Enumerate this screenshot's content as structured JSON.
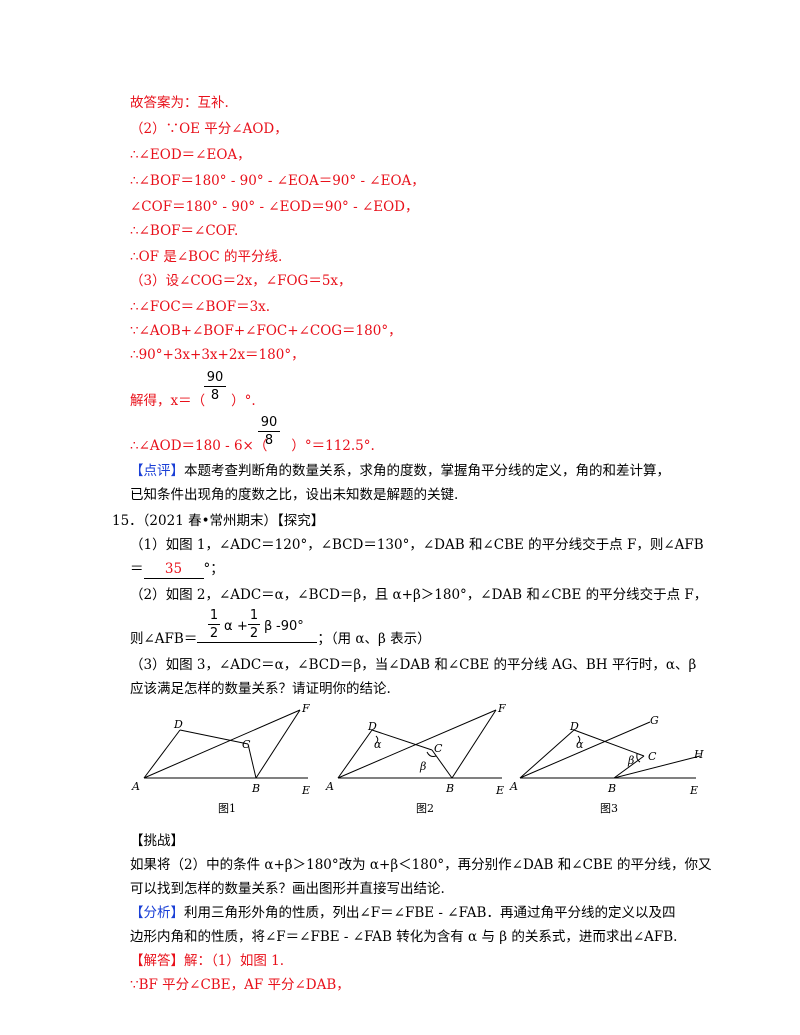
{
  "lines": {
    "l1": "故答案为：互补.",
    "l2": "（2）∵OE 平分∠AOD，",
    "l3": "∴∠EOD＝∠EOA，",
    "l4": "∴∠BOF＝180° - 90° - ∠EOA＝90° - ∠EOA，",
    "l5": "∠COF＝180° - 90° - ∠EOD＝90° - ∠EOD，",
    "l6": "∴∠BOF＝∠COF.",
    "l7": "∴OF 是∠BOC 的平分线.",
    "l8": "（3）设∠COG＝2x，∠FOG＝5x，",
    "l9": "∴∠FOC＝∠BOF＝3x.",
    "l10": "∵∠AOB+∠BOF+∠FOC+∠COG＝180°，",
    "l11": "∴90°+3x+3x+2x＝180°，",
    "l12a": "解得，x＝（",
    "l12b": "）°.",
    "l13a": "∴∠AOD＝180 - 6×（",
    "l13b": "）°＝112.5°.",
    "comment_tag": "【点评】",
    "comment1": "本题考查判断角的数量关系，求角的度数，掌握角平分线的定义，角的和差计算，",
    "comment2": "已知条件出现角的度数之比，设出未知数是解题的关键.",
    "q15": "15．（2021 春•常州期末）【探究】",
    "q1a": "（1）如图 1，∠ADC＝120°，∠BCD＝130°，∠DAB 和∠CBE 的平分线交于点 F，则∠AFB",
    "q1b_pre": "＝",
    "q1b_ans": "35",
    "q1b_post": "°；",
    "q2a": "（2）如图 2，∠ADC＝α，∠BCD＝β，且 α+β＞180°，∠DAB 和∠CBE 的平分线交于点 F，",
    "q2b_pre": "则∠AFB＝",
    "q2b_post": "；（用 α、β 表示）",
    "q3a": "（3）如图 3，∠ADC＝α，∠BCD＝β，当∠DAB 和∠CBE 的平分线 AG、BH 平行时，α、β",
    "q3b": "应该满足怎样的数量关系？请证明你的结论.",
    "challenge": "【挑战】",
    "ch1": "如果将（2）中的条件 α+β＞180°改为 α+β＜180°，再分别作∠DAB 和∠CBE 的平分线，你又",
    "ch2": "可以找到怎样的数量关系？画出图形并直接写出结论.",
    "analysis_tag": "【分析】",
    "an1": "利用三角形外角的性质，列出∠F＝∠FBE - ∠FAB．再通过角平分线的定义以及四",
    "an2": "边形内角和的性质，将∠F＝∠FBE - ∠FAB 转化为含有 α 与 β 的关系式，进而求出∠AFB.",
    "answer_tag": "【解答】",
    "ans1": "解：（1）如图 1.",
    "ans2": "∵BF 平分∠CBE，AF 平分∠DAB，",
    "frac_num": "90",
    "frac_den": "8",
    "half_num": "1",
    "half_den": "2",
    "alpha": "α",
    "beta": "β",
    "plus": "+",
    "minus90": "-90°",
    "fig1": "图1",
    "fig2": "图2",
    "fig3": "图3",
    "pts": {
      "A": "A",
      "B": "B",
      "C": "C",
      "D": "D",
      "E": "E",
      "F": "F",
      "G": "G",
      "H": "H"
    }
  }
}
